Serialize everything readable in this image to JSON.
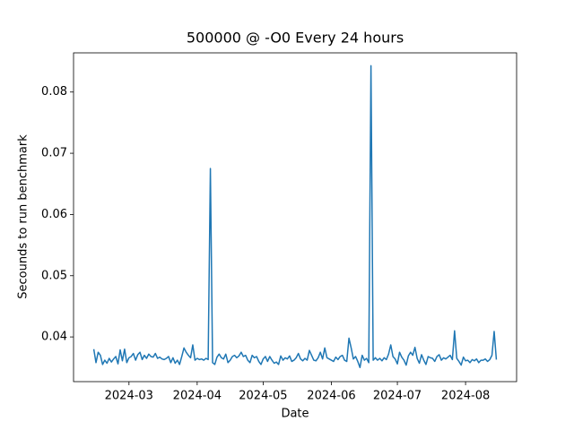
{
  "chart_data": {
    "type": "line",
    "title": "500000 @ -O0 Every 24 hours",
    "x_label": "Date",
    "y_label": "Secounds to run benchmark",
    "x": [
      19767,
      19768,
      19769,
      19770,
      19771,
      19772,
      19773,
      19774,
      19775,
      19776,
      19777,
      19778,
      19779,
      19780,
      19781,
      19782,
      19783,
      19784,
      19785,
      19786,
      19787,
      19788,
      19789,
      19790,
      19791,
      19792,
      19793,
      19794,
      19795,
      19796,
      19797,
      19798,
      19799,
      19800,
      19801,
      19802,
      19803,
      19804,
      19805,
      19806,
      19807,
      19808,
      19809,
      19810,
      19811,
      19812,
      19813,
      19814,
      19815,
      19816,
      19817,
      19818,
      19819,
      19820,
      19821,
      19822,
      19823,
      19824,
      19825,
      19826,
      19827,
      19828,
      19829,
      19830,
      19831,
      19832,
      19833,
      19834,
      19835,
      19836,
      19837,
      19838,
      19839,
      19840,
      19841,
      19842,
      19843,
      19844,
      19845,
      19846,
      19847,
      19848,
      19849,
      19850,
      19851,
      19852,
      19853,
      19854,
      19855,
      19856,
      19857,
      19858,
      19859,
      19860,
      19861,
      19862,
      19863,
      19864,
      19865,
      19866,
      19867,
      19868,
      19869,
      19870,
      19871,
      19872,
      19873,
      19874,
      19875,
      19876,
      19877,
      19878,
      19879,
      19880,
      19881,
      19882,
      19883,
      19884,
      19885,
      19886,
      19887,
      19888,
      19889,
      19890,
      19891,
      19892,
      19893,
      19894,
      19895,
      19896,
      19897,
      19898,
      19899,
      19900,
      19901,
      19902,
      19903,
      19904,
      19905,
      19906,
      19907,
      19908,
      19909,
      19910,
      19911,
      19912,
      19913,
      19914,
      19915,
      19916,
      19917,
      19918,
      19919,
      19920,
      19921,
      19922,
      19923,
      19924,
      19925,
      19926,
      19927,
      19928,
      19929,
      19930,
      19931,
      19932,
      19933,
      19934,
      19935,
      19936,
      19937,
      19938,
      19939,
      19940,
      19941,
      19942,
      19943,
      19944,
      19945,
      19946,
      19947,
      19948,
      19949,
      19950
    ],
    "values": [
      0.038,
      0.0358,
      0.0375,
      0.037,
      0.0355,
      0.0362,
      0.0357,
      0.0365,
      0.0359,
      0.0364,
      0.0368,
      0.0356,
      0.0379,
      0.0361,
      0.038,
      0.0358,
      0.0366,
      0.0368,
      0.0373,
      0.0362,
      0.0371,
      0.0375,
      0.0363,
      0.037,
      0.0365,
      0.0372,
      0.0368,
      0.0367,
      0.0373,
      0.0365,
      0.0367,
      0.0364,
      0.0363,
      0.0365,
      0.0368,
      0.0358,
      0.0366,
      0.0357,
      0.0362,
      0.0355,
      0.0368,
      0.0382,
      0.0375,
      0.037,
      0.0366,
      0.0387,
      0.0362,
      0.0365,
      0.0363,
      0.0364,
      0.0362,
      0.0365,
      0.0363,
      0.0675,
      0.0358,
      0.0355,
      0.0367,
      0.0372,
      0.0366,
      0.0364,
      0.0372,
      0.0358,
      0.0362,
      0.0368,
      0.037,
      0.0366,
      0.0369,
      0.0375,
      0.0368,
      0.037,
      0.0362,
      0.0358,
      0.037,
      0.0366,
      0.0368,
      0.036,
      0.0355,
      0.0364,
      0.0368,
      0.036,
      0.0368,
      0.0362,
      0.0357,
      0.0359,
      0.0355,
      0.0369,
      0.0362,
      0.0366,
      0.0364,
      0.0369,
      0.036,
      0.0362,
      0.0366,
      0.0373,
      0.0364,
      0.0361,
      0.0365,
      0.0362,
      0.0378,
      0.037,
      0.0362,
      0.0361,
      0.0366,
      0.0375,
      0.0364,
      0.0382,
      0.0366,
      0.0364,
      0.0362,
      0.036,
      0.0367,
      0.0363,
      0.0368,
      0.037,
      0.0362,
      0.036,
      0.0398,
      0.0382,
      0.0364,
      0.0368,
      0.036,
      0.035,
      0.037,
      0.0362,
      0.0365,
      0.0358,
      0.0843,
      0.0362,
      0.0366,
      0.0362,
      0.0365,
      0.0361,
      0.0366,
      0.0363,
      0.0372,
      0.0387,
      0.0368,
      0.0364,
      0.0356,
      0.0375,
      0.0367,
      0.0362,
      0.0354,
      0.0369,
      0.0375,
      0.037,
      0.0383,
      0.0365,
      0.0357,
      0.0371,
      0.0362,
      0.0355,
      0.0368,
      0.0366,
      0.0365,
      0.036,
      0.0368,
      0.0371,
      0.0362,
      0.0366,
      0.0364,
      0.0367,
      0.037,
      0.0363,
      0.041,
      0.0365,
      0.036,
      0.0354,
      0.0367,
      0.0361,
      0.0362,
      0.0358,
      0.0363,
      0.0361,
      0.0364,
      0.0358,
      0.0362,
      0.0362,
      0.0364,
      0.036,
      0.0363,
      0.037,
      0.0409,
      0.0363
    ],
    "color": "#1f77b4",
    "xlim": [
      19757.8,
      19959.2
    ],
    "xticks": [
      {
        "value": 19783,
        "label": "2024-03"
      },
      {
        "value": 19814,
        "label": "2024-04"
      },
      {
        "value": 19844,
        "label": "2024-05"
      },
      {
        "value": 19875,
        "label": "2024-06"
      },
      {
        "value": 19905,
        "label": "2024-07"
      },
      {
        "value": 19936,
        "label": "2024-08"
      }
    ],
    "ylim": [
      0.0327,
      0.0864
    ],
    "yticks": [
      0.04,
      0.05,
      0.06,
      0.07,
      0.08
    ],
    "grid": false
  }
}
